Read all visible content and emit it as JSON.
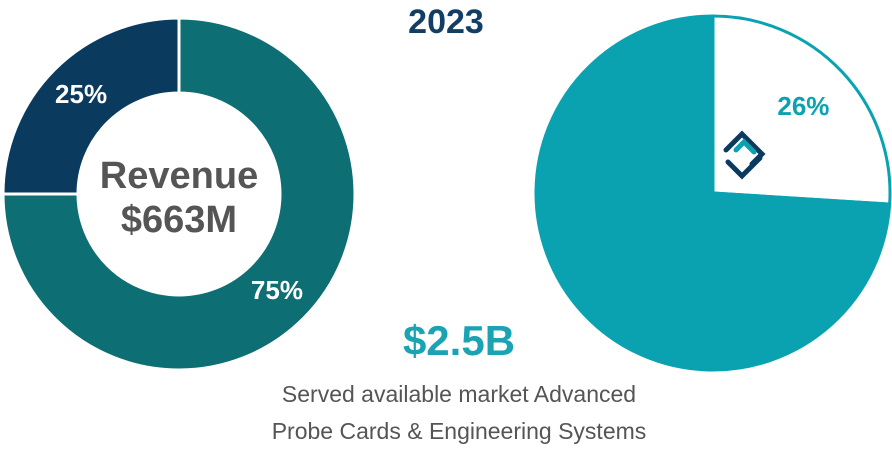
{
  "title": "2023",
  "chart_data": [
    {
      "type": "donut",
      "center_label": [
        "Revenue",
        "$663M"
      ],
      "values": [
        75,
        25
      ],
      "value_labels": [
        "75%",
        "25%"
      ],
      "colors": [
        "#0d6e74",
        "#0b3a5f"
      ]
    },
    {
      "type": "pie",
      "values": [
        26,
        74
      ],
      "value_labels": [
        "26%",
        null
      ],
      "colors": [
        "#ffffff",
        "#0aa2b1"
      ],
      "annotation": "$2.5B",
      "caption": [
        "Served available market Advanced",
        "Probe Cards & Engineering Systems"
      ]
    }
  ]
}
